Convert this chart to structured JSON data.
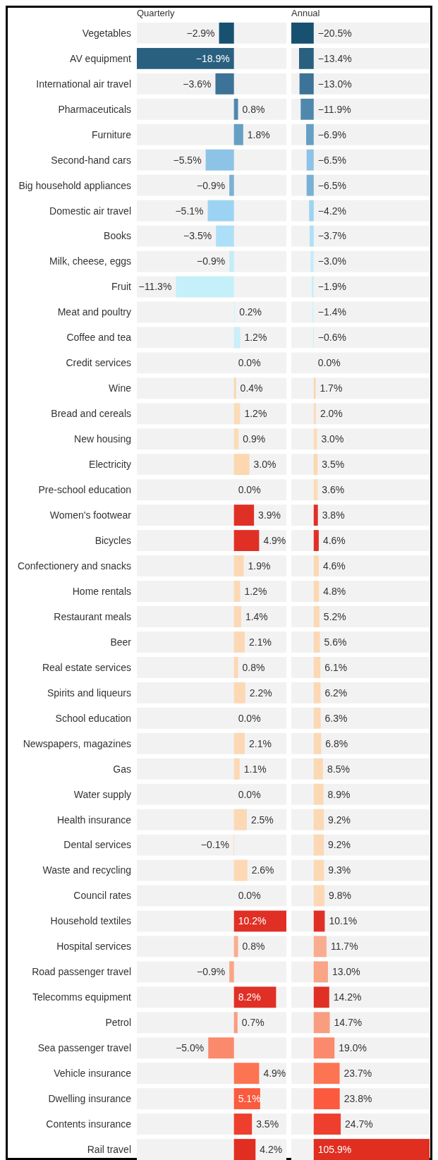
{
  "chart_data": [
    {
      "type": "bar",
      "orientation": "horizontal",
      "title": "Quarterly",
      "categories": [
        "Vegetables",
        "AV equipment",
        "International air travel",
        "Pharmaceuticals",
        "Furniture",
        "Second-hand cars",
        "Big household appliances",
        "Domestic air travel",
        "Books",
        "Milk, cheese, eggs",
        "Fruit",
        "Meat and poultry",
        "Coffee and tea",
        "Credit services",
        "Wine",
        "Bread and cereals",
        "New housing",
        "Electricity",
        "Pre-school education",
        "Women's footwear",
        "Bicycles",
        "Confectionery and snacks",
        "Home rentals",
        "Restaurant meals",
        "Beer",
        "Real estate services",
        "Spirits and liqueurs",
        "School education",
        "Newspapers, magazines",
        "Gas",
        "Water supply",
        "Health insurance",
        "Dental services",
        "Waste and recycling",
        "Council rates",
        "Household textiles",
        "Hospital services",
        "Road passenger travel",
        "Telecomms equipment",
        "Petrol",
        "Sea passenger travel",
        "Vehicle insurance",
        "Dwelling insurance",
        "Contents insurance",
        "Rail travel"
      ],
      "values": [
        -2.9,
        -18.9,
        -3.6,
        0.8,
        1.8,
        -5.5,
        -0.9,
        -5.1,
        -3.5,
        -0.9,
        -11.3,
        0.2,
        1.2,
        0.0,
        0.4,
        1.2,
        0.9,
        3.0,
        0.0,
        3.9,
        4.9,
        1.9,
        1.2,
        1.4,
        2.1,
        0.8,
        2.2,
        0.0,
        2.1,
        1.1,
        0.0,
        2.5,
        -0.1,
        2.6,
        0.0,
        10.2,
        0.8,
        -0.9,
        8.2,
        0.7,
        -5.0,
        4.9,
        5.1,
        3.5,
        4.2
      ],
      "value_labels": [
        "−2.9%",
        "−18.9%",
        "−3.6%",
        "0.8%",
        "1.8%",
        "−5.5%",
        "−0.9%",
        "−5.1%",
        "−3.5%",
        "−0.9%",
        "−11.3%",
        "0.2%",
        "1.2%",
        "0.0%",
        "0.4%",
        "1.2%",
        "0.9%",
        "3.0%",
        "0.0%",
        "3.9%",
        "4.9%",
        "1.9%",
        "1.2%",
        "1.4%",
        "2.1%",
        "0.8%",
        "2.2%",
        "0.0%",
        "2.1%",
        "1.1%",
        "0.0%",
        "2.5%",
        "−0.1%",
        "2.6%",
        "0.0%",
        "10.2%",
        "0.8%",
        "−0.9%",
        "8.2%",
        "0.7%",
        "−5.0%",
        "4.9%",
        "5.1%",
        "3.5%",
        "4.2%"
      ],
      "colors": [
        "#185170",
        "#2a607f",
        "#3d7396",
        "#5088ad",
        "#659fc4",
        "#8cc3e6",
        "#79b0d5",
        "#9dd3f2",
        "#ade0f8",
        "#c5ecf9",
        "#c5f0fa",
        "#d4f3fa",
        "#c9eff9",
        "#f2f2f2",
        "#fbd5b0",
        "#fcdcb8",
        "#fcdcb8",
        "#fcd7b0",
        "#fcdcb8",
        "#e03026",
        "#e03026",
        "#fcd8b4",
        "#fcd8b4",
        "#fcd8b4",
        "#fcd8b4",
        "#fcd8b4",
        "#fcd8b4",
        "#fcd8b4",
        "#fcd8b4",
        "#fcd8b4",
        "#fcd8b4",
        "#fcd8b4",
        "#fcd8b4",
        "#fcd8b4",
        "#fcd8b4",
        "#e03026",
        "#f9ad90",
        "#f9a586",
        "#e03026",
        "#f99d80",
        "#fb8a6c",
        "#fc7452",
        "#fb5a3e",
        "#ee3e2e",
        "#e02e20"
      ]
    },
    {
      "type": "bar",
      "orientation": "horizontal",
      "title": "Annual",
      "categories": [
        null,
        null,
        null,
        null,
        null,
        null,
        null,
        null,
        null,
        null,
        null,
        null,
        null,
        null,
        null,
        null,
        null,
        null,
        null,
        null,
        null,
        null,
        null,
        null,
        null,
        null,
        null,
        null,
        null,
        null,
        null,
        null,
        null,
        null,
        null,
        null,
        null,
        null,
        null,
        null,
        null,
        null,
        null,
        null,
        null
      ],
      "values": [
        -20.5,
        -13.4,
        -13.0,
        -11.9,
        -6.9,
        -6.5,
        -6.5,
        -4.2,
        -3.7,
        -3.0,
        -1.9,
        -1.4,
        -0.6,
        0.0,
        1.7,
        2.0,
        3.0,
        3.5,
        3.6,
        3.8,
        4.6,
        4.6,
        4.8,
        5.2,
        5.6,
        6.1,
        6.2,
        6.3,
        6.8,
        8.5,
        8.9,
        9.2,
        9.2,
        9.3,
        9.8,
        10.1,
        11.7,
        13.0,
        14.2,
        14.7,
        19.0,
        23.7,
        23.8,
        24.7,
        105.9
      ],
      "value_labels": [
        "−20.5%",
        "−13.4%",
        "−13.0%",
        "−11.9%",
        "−6.9%",
        "−6.5%",
        "−6.5%",
        "−4.2%",
        "−3.7%",
        "−3.0%",
        "−1.9%",
        "−1.4%",
        "−0.6%",
        "0.0%",
        "1.7%",
        "2.0%",
        "3.0%",
        "3.5%",
        "3.6%",
        "3.8%",
        "4.6%",
        "4.6%",
        "4.8%",
        "5.2%",
        "5.6%",
        "6.1%",
        "6.2%",
        "6.3%",
        "6.8%",
        "8.5%",
        "8.9%",
        "9.2%",
        "9.2%",
        "9.3%",
        "9.8%",
        "10.1%",
        "11.7%",
        "13.0%",
        "14.2%",
        "14.7%",
        "19.0%",
        "23.7%",
        "23.8%",
        "24.7%",
        "105.9%"
      ],
      "colors": [
        "#185170",
        "#2a607f",
        "#3d7396",
        "#5088ad",
        "#659fc4",
        "#8cc3e6",
        "#79b0d5",
        "#9dd3f2",
        "#ade0f8",
        "#c5ecf9",
        "#c5f0fa",
        "#d4f3fa",
        "#c9eff9",
        "#f2f2f2",
        "#fbd5b0",
        "#fcdcb8",
        "#fcdcb8",
        "#fcd7b0",
        "#fcdcb8",
        "#e03026",
        "#e03026",
        "#fcd8b4",
        "#fcd8b4",
        "#fcd8b4",
        "#fcd8b4",
        "#fcd8b4",
        "#fcd8b4",
        "#fcd8b4",
        "#fcd8b4",
        "#fcd8b4",
        "#fcd8b4",
        "#fcd8b4",
        "#fcd8b4",
        "#fcd8b4",
        "#fcd8b4",
        "#e03026",
        "#f9ad90",
        "#f9a586",
        "#e03026",
        "#f99d80",
        "#fb8a6c",
        "#fc7452",
        "#fb5a3e",
        "#ee3e2e",
        "#e02e20"
      ]
    }
  ]
}
